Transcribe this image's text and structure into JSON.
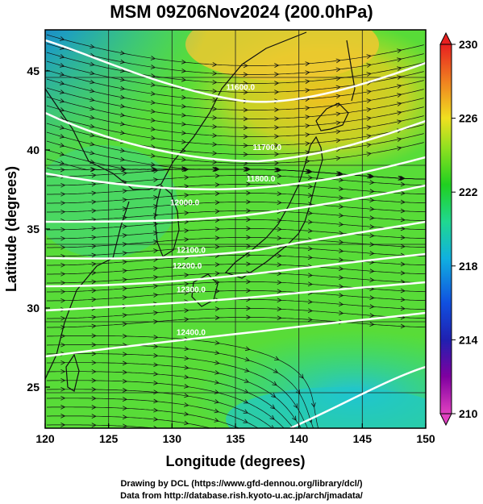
{
  "chart_data": {
    "type": "heatmap",
    "title": "MSM 09Z06Nov2024 (200.0hPa)",
    "xlabel": "Longitude (degrees)",
    "ylabel": "Latitude  (degrees)",
    "xlim": [
      120,
      150
    ],
    "ylim": [
      22.4,
      47.6
    ],
    "x_ticks": [
      "120",
      "125",
      "130",
      "135",
      "140",
      "145",
      "150"
    ],
    "y_ticks": [
      "25",
      "30",
      "35",
      "40",
      "45"
    ],
    "colorbar": {
      "ticks": [
        "210",
        "214",
        "218",
        "222",
        "226",
        "230"
      ],
      "range": [
        210,
        230
      ]
    },
    "contour_labels": [
      {
        "text": "11600.0",
        "lon": 135.4,
        "lat": 43.8
      },
      {
        "text": "11700.0",
        "lon": 137.5,
        "lat": 40.0
      },
      {
        "text": "11800.0",
        "lon": 137.0,
        "lat": 38.0
      },
      {
        "text": "12000.0",
        "lon": 131.0,
        "lat": 36.5
      },
      {
        "text": "12100.0",
        "lon": 131.5,
        "lat": 33.5
      },
      {
        "text": "12200.0",
        "lon": 131.2,
        "lat": 32.5
      },
      {
        "text": "12300.0",
        "lon": 131.5,
        "lat": 31.0
      },
      {
        "text": "12400.0",
        "lon": 131.5,
        "lat": 28.3
      }
    ],
    "grid": true,
    "wind_field": "streamlines",
    "temperature_label": "",
    "footer_lines": [
      "Drawing by DCL (https://www.gfd-dennou.org/library/dcl/)",
      "Data from http://database.rish.kyoto-u.ac.jp/arch/jmadata/"
    ]
  }
}
